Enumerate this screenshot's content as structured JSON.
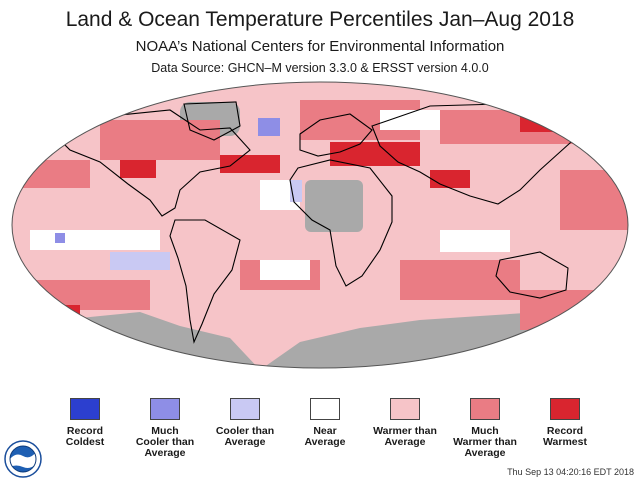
{
  "header": {
    "title": "Land & Ocean Temperature Percentiles Jan–Aug 2018",
    "subtitle": "NOAA’s National Centers for Environmental Information",
    "source": "Data Source: GHCN–M version 3.3.0 & ERSST version 4.0.0"
  },
  "map": {
    "projection": "robinson",
    "colors": {
      "ocean_missing": "#a9a9a9",
      "record_coldest": "#2c3fcf",
      "much_cooler": "#8e8ee6",
      "cooler": "#c9c9f3",
      "near_average": "#ffffff",
      "warmer": "#f6c4c8",
      "much_warmer": "#ea7c84",
      "record_warmest": "#d9252f",
      "coastline": "#000000"
    }
  },
  "legend": {
    "items": [
      {
        "label": "Record\nColdest",
        "color": "#2c3fcf"
      },
      {
        "label": "Much\nCooler than\nAverage",
        "color": "#8e8ee6"
      },
      {
        "label": "Cooler than\nAverage",
        "color": "#c9c9f3"
      },
      {
        "label": "Near\nAverage",
        "color": "#ffffff"
      },
      {
        "label": "Warmer than\nAverage",
        "color": "#f6c4c8"
      },
      {
        "label": "Much\nWarmer than\nAverage",
        "color": "#ea7c84"
      },
      {
        "label": "Record\nWarmest",
        "color": "#d9252f"
      }
    ]
  },
  "footer": {
    "timestamp": "Thu Sep 13 04:20:16 EDT 2018",
    "logo_icon": "noaa-logo"
  }
}
